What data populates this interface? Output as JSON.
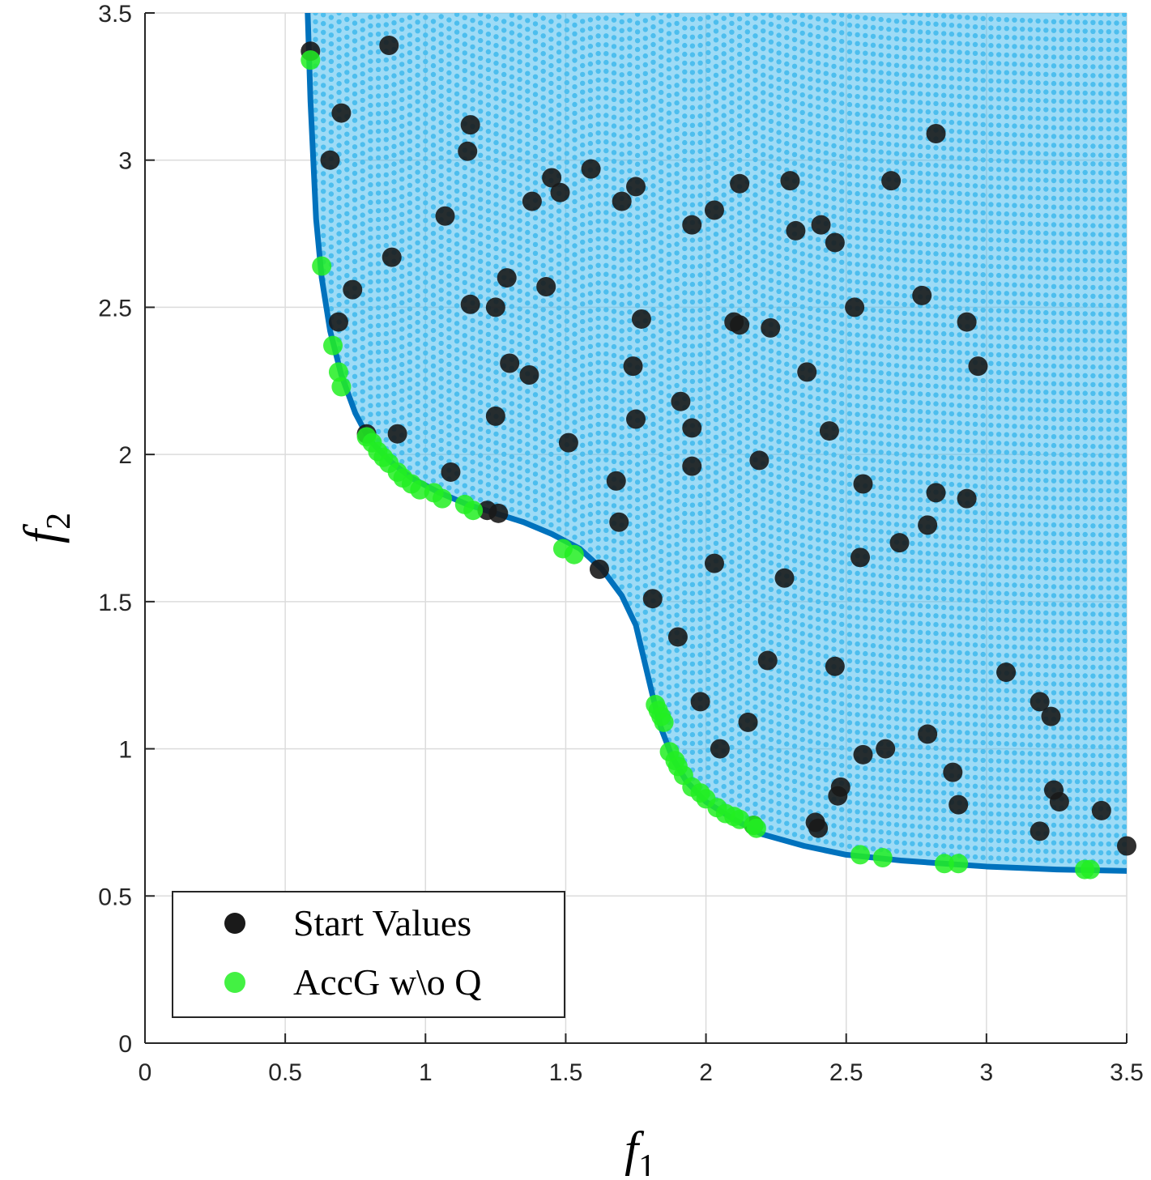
{
  "chart_data": {
    "type": "scatter",
    "title": "",
    "xlabel": {
      "main": "f",
      "sub": "1"
    },
    "ylabel": {
      "main": "f",
      "sub": "2"
    },
    "xlim": [
      0,
      3.5
    ],
    "ylim": [
      0,
      3.5
    ],
    "xticks": [
      "0",
      "0.5",
      "1",
      "1.5",
      "2",
      "2.5",
      "3",
      "3.5"
    ],
    "yticks": [
      "0",
      "0.5",
      "1",
      "1.5",
      "2",
      "2.5",
      "3",
      "3.5"
    ],
    "grid": true,
    "legend_position": "bottom-left",
    "colors": {
      "feasible_region": "#4dbeee",
      "pareto_front": "#0072bd",
      "start_values": "#1a1a1a",
      "accg": "#22ee22",
      "axis": "#262626",
      "grid": "#dcdcdc"
    },
    "pareto_front": [
      [
        0.58,
        3.5
      ],
      [
        0.59,
        3.2
      ],
      [
        0.6,
        3.0
      ],
      [
        0.61,
        2.8
      ],
      [
        0.63,
        2.6
      ],
      [
        0.66,
        2.42
      ],
      [
        0.7,
        2.27
      ],
      [
        0.75,
        2.14
      ],
      [
        0.8,
        2.05
      ],
      [
        0.87,
        1.98
      ],
      [
        0.95,
        1.92
      ],
      [
        1.05,
        1.87
      ],
      [
        1.15,
        1.83
      ],
      [
        1.25,
        1.8
      ],
      [
        1.35,
        1.77
      ],
      [
        1.45,
        1.73
      ],
      [
        1.55,
        1.68
      ],
      [
        1.63,
        1.61
      ],
      [
        1.7,
        1.52
      ],
      [
        1.75,
        1.42
      ],
      [
        1.78,
        1.3
      ],
      [
        1.81,
        1.18
      ],
      [
        1.84,
        1.07
      ],
      [
        1.88,
        0.97
      ],
      [
        1.93,
        0.89
      ],
      [
        2.0,
        0.82
      ],
      [
        2.1,
        0.76
      ],
      [
        2.2,
        0.71
      ],
      [
        2.35,
        0.67
      ],
      [
        2.5,
        0.64
      ],
      [
        2.7,
        0.62
      ],
      [
        3.0,
        0.6
      ],
      [
        3.25,
        0.59
      ],
      [
        3.5,
        0.585
      ]
    ],
    "series": [
      {
        "name": "Start Values",
        "marker": "circle",
        "points": [
          [
            0.59,
            3.37
          ],
          [
            0.87,
            3.39
          ],
          [
            0.7,
            3.16
          ],
          [
            0.66,
            3.0
          ],
          [
            1.16,
            3.12
          ],
          [
            1.15,
            3.03
          ],
          [
            1.59,
            2.97
          ],
          [
            1.45,
            2.94
          ],
          [
            1.48,
            2.89
          ],
          [
            1.75,
            2.91
          ],
          [
            1.7,
            2.86
          ],
          [
            1.38,
            2.86
          ],
          [
            1.07,
            2.81
          ],
          [
            2.03,
            2.83
          ],
          [
            1.95,
            2.78
          ],
          [
            2.12,
            2.92
          ],
          [
            2.3,
            2.93
          ],
          [
            2.66,
            2.93
          ],
          [
            2.82,
            3.09
          ],
          [
            2.32,
            2.76
          ],
          [
            2.41,
            2.78
          ],
          [
            2.46,
            2.72
          ],
          [
            0.88,
            2.67
          ],
          [
            1.29,
            2.6
          ],
          [
            1.43,
            2.57
          ],
          [
            0.74,
            2.56
          ],
          [
            1.16,
            2.51
          ],
          [
            1.25,
            2.5
          ],
          [
            2.53,
            2.5
          ],
          [
            2.77,
            2.54
          ],
          [
            2.93,
            2.45
          ],
          [
            0.69,
            2.45
          ],
          [
            1.77,
            2.46
          ],
          [
            2.1,
            2.45
          ],
          [
            2.12,
            2.44
          ],
          [
            2.23,
            2.43
          ],
          [
            1.3,
            2.31
          ],
          [
            1.74,
            2.3
          ],
          [
            2.36,
            2.28
          ],
          [
            2.97,
            2.3
          ],
          [
            1.37,
            2.27
          ],
          [
            1.25,
            2.13
          ],
          [
            1.75,
            2.12
          ],
          [
            1.91,
            2.18
          ],
          [
            1.95,
            2.09
          ],
          [
            2.44,
            2.08
          ],
          [
            0.9,
            2.07
          ],
          [
            0.79,
            2.07
          ],
          [
            1.51,
            2.04
          ],
          [
            1.95,
            1.96
          ],
          [
            2.19,
            1.98
          ],
          [
            1.09,
            1.94
          ],
          [
            1.68,
            1.91
          ],
          [
            2.56,
            1.9
          ],
          [
            2.82,
            1.87
          ],
          [
            2.93,
            1.85
          ],
          [
            1.22,
            1.81
          ],
          [
            1.26,
            1.8
          ],
          [
            1.69,
            1.77
          ],
          [
            2.79,
            1.76
          ],
          [
            2.69,
            1.7
          ],
          [
            2.03,
            1.63
          ],
          [
            2.55,
            1.65
          ],
          [
            1.62,
            1.61
          ],
          [
            2.28,
            1.58
          ],
          [
            1.81,
            1.51
          ],
          [
            1.9,
            1.38
          ],
          [
            2.22,
            1.3
          ],
          [
            2.46,
            1.28
          ],
          [
            3.07,
            1.26
          ],
          [
            1.98,
            1.16
          ],
          [
            3.19,
            1.16
          ],
          [
            3.23,
            1.11
          ],
          [
            2.15,
            1.09
          ],
          [
            2.79,
            1.05
          ],
          [
            2.05,
            1.0
          ],
          [
            2.64,
            1.0
          ],
          [
            2.56,
            0.98
          ],
          [
            2.88,
            0.92
          ],
          [
            2.48,
            0.87
          ],
          [
            2.47,
            0.84
          ],
          [
            3.24,
            0.86
          ],
          [
            3.26,
            0.82
          ],
          [
            2.9,
            0.81
          ],
          [
            3.41,
            0.79
          ],
          [
            2.39,
            0.75
          ],
          [
            2.4,
            0.73
          ],
          [
            3.19,
            0.72
          ],
          [
            2.17,
            0.74
          ],
          [
            3.5,
            0.67
          ]
        ]
      },
      {
        "name": "AccG w\\o Q",
        "marker": "circle",
        "points": [
          [
            0.59,
            3.34
          ],
          [
            0.63,
            2.64
          ],
          [
            0.67,
            2.37
          ],
          [
            0.69,
            2.28
          ],
          [
            0.7,
            2.23
          ],
          [
            0.79,
            2.06
          ],
          [
            0.81,
            2.04
          ],
          [
            0.83,
            2.01
          ],
          [
            0.85,
            1.99
          ],
          [
            0.87,
            1.97
          ],
          [
            0.9,
            1.94
          ],
          [
            0.92,
            1.92
          ],
          [
            0.95,
            1.9
          ],
          [
            0.98,
            1.88
          ],
          [
            1.03,
            1.87
          ],
          [
            1.06,
            1.85
          ],
          [
            1.14,
            1.83
          ],
          [
            1.17,
            1.81
          ],
          [
            1.49,
            1.68
          ],
          [
            1.53,
            1.66
          ],
          [
            1.82,
            1.15
          ],
          [
            1.83,
            1.13
          ],
          [
            1.84,
            1.11
          ],
          [
            1.85,
            1.09
          ],
          [
            1.87,
            0.99
          ],
          [
            1.89,
            0.96
          ],
          [
            1.9,
            0.94
          ],
          [
            1.92,
            0.91
          ],
          [
            1.95,
            0.87
          ],
          [
            1.98,
            0.85
          ],
          [
            2.0,
            0.83
          ],
          [
            2.04,
            0.8
          ],
          [
            2.07,
            0.78
          ],
          [
            2.1,
            0.77
          ],
          [
            2.12,
            0.76
          ],
          [
            2.17,
            0.74
          ],
          [
            2.18,
            0.73
          ],
          [
            2.55,
            0.64
          ],
          [
            2.63,
            0.63
          ],
          [
            2.85,
            0.61
          ],
          [
            2.9,
            0.61
          ],
          [
            3.35,
            0.59
          ],
          [
            3.37,
            0.59
          ]
        ]
      }
    ]
  },
  "legend": {
    "items": [
      {
        "label": "Start Values",
        "color": "#1a1a1a"
      },
      {
        "label": "AccG w\\o Q",
        "color": "#22ee22"
      }
    ]
  }
}
